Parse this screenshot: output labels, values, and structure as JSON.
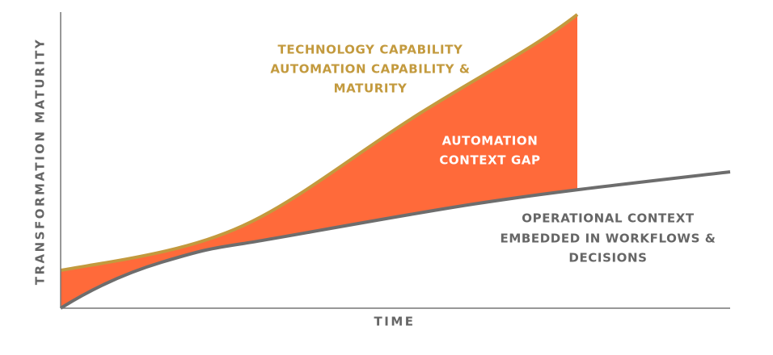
{
  "axes": {
    "y_label": "TRANSFORMATION MATURITY",
    "x_label": "TIME"
  },
  "labels": [
    {
      "lines": [
        "TECHNOLOGY CAPABILITY",
        "AUTOMATION CAPABILITY &",
        "MATURITY"
      ]
    },
    {
      "lines": [
        "AUTOMATION",
        "CONTEXT GAP"
      ]
    },
    {
      "lines": [
        "OPERATIONAL CONTEXT",
        "EMBEDDED IN WORKFLOWS &",
        "DECISIONS"
      ]
    }
  ]
}
